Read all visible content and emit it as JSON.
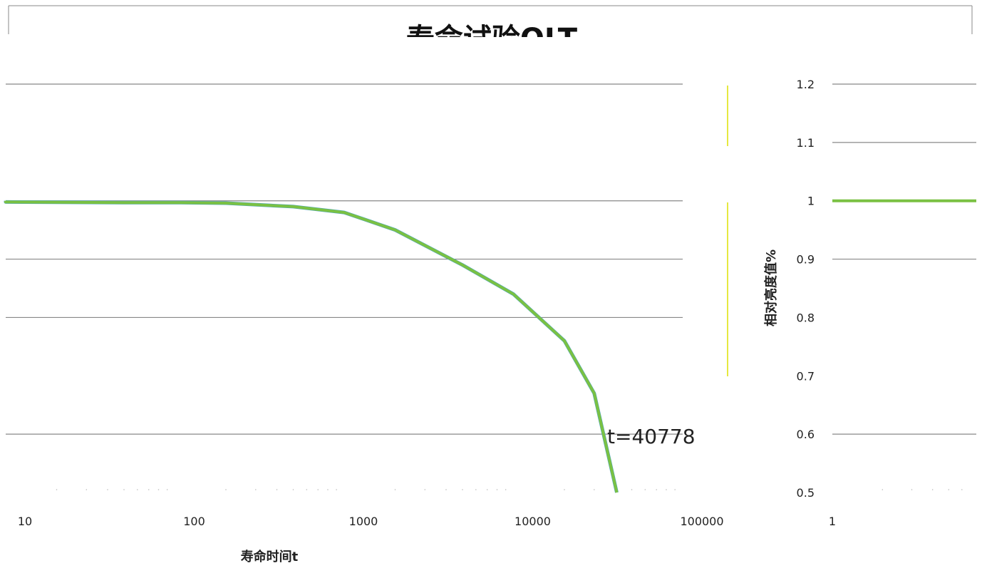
{
  "chart_data": [
    {
      "type": "line",
      "title": "寿命试验OLT",
      "xlabel": "寿命时间t",
      "ylabel": "",
      "x_scale": "log",
      "xlim": [
        10,
        100000
      ],
      "ylim": [
        0.5,
        1.2
      ],
      "x_tick_labels": [
        "10",
        "100",
        "1000",
        "10000",
        "100000"
      ],
      "grid": true,
      "series": [
        {
          "color": "#7ac143",
          "x": [
            5,
            10,
            50,
            100,
            200,
            500,
            1000,
            2000,
            5000,
            10000,
            20000,
            30000,
            40778
          ],
          "y": [
            1.0,
            0.998,
            0.997,
            0.997,
            0.996,
            0.99,
            0.98,
            0.95,
            0.89,
            0.84,
            0.76,
            0.67,
            0.5
          ]
        }
      ],
      "annotations": [
        {
          "text": "t=40778",
          "x": 40778,
          "y": 0.6
        }
      ]
    },
    {
      "type": "line",
      "ylabel": "相对亮度值%",
      "x_scale": "log",
      "ylim": [
        0.5,
        1.2
      ],
      "y_tick_labels": [
        "0.5",
        "0.6",
        "0.7",
        "0.8",
        "0.9",
        "1",
        "1.1",
        "1.2"
      ],
      "x_tick_labels": [
        "1"
      ],
      "grid": true,
      "series": [
        {
          "color": "#7ac143",
          "x": [
            1,
            2,
            5
          ],
          "y": [
            1.0,
            1.0,
            1.0
          ]
        }
      ]
    }
  ]
}
